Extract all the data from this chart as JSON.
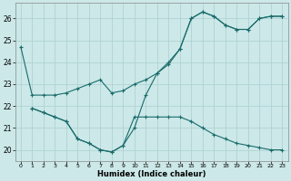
{
  "xlabel": "Humidex (Indice chaleur)",
  "bg_color": "#cce8e8",
  "line_color": "#1a6b6b",
  "grid_color": "#aacfcf",
  "xlim": [
    -0.5,
    23.5
  ],
  "ylim": [
    19.5,
    26.7
  ],
  "xticks": [
    0,
    1,
    2,
    3,
    4,
    5,
    6,
    7,
    8,
    9,
    10,
    11,
    12,
    13,
    14,
    15,
    16,
    17,
    18,
    19,
    20,
    21,
    22,
    23
  ],
  "yticks": [
    20,
    21,
    22,
    23,
    24,
    25,
    26
  ],
  "line1_x": [
    0,
    1,
    2,
    3,
    4,
    5,
    6,
    7,
    8,
    9,
    10,
    11,
    12,
    13,
    14,
    15,
    16,
    17,
    18,
    19,
    20,
    21,
    22,
    23
  ],
  "line1_y": [
    24.7,
    22.5,
    22.5,
    22.5,
    22.6,
    22.8,
    23.0,
    23.2,
    22.6,
    22.7,
    23.0,
    23.2,
    23.5,
    23.9,
    24.6,
    26.0,
    26.3,
    26.1,
    25.7,
    25.5,
    25.5,
    26.0,
    26.1,
    26.1
  ],
  "line2_x": [
    1,
    2,
    3,
    4,
    5,
    6,
    7,
    8,
    9,
    10,
    11,
    12,
    13,
    14,
    15,
    16,
    17,
    18,
    19,
    20,
    21,
    22,
    23
  ],
  "line2_y": [
    21.9,
    21.7,
    21.5,
    21.3,
    20.5,
    20.3,
    20.0,
    19.9,
    20.2,
    21.5,
    21.5,
    21.5,
    21.5,
    21.5,
    21.3,
    21.0,
    20.7,
    20.5,
    20.3,
    20.2,
    20.1,
    20.0,
    20.0
  ],
  "line3_x": [
    1,
    2,
    3,
    4,
    5,
    6,
    7,
    8,
    9,
    10,
    11,
    12,
    13,
    14,
    15,
    16,
    17,
    18,
    19,
    20,
    21,
    22,
    23
  ],
  "line3_y": [
    21.9,
    21.7,
    21.5,
    21.3,
    20.5,
    20.3,
    20.0,
    19.9,
    20.2,
    21.0,
    22.5,
    23.5,
    24.0,
    24.6,
    26.0,
    26.3,
    26.1,
    25.7,
    25.5,
    25.5,
    26.0,
    26.1,
    26.1
  ]
}
